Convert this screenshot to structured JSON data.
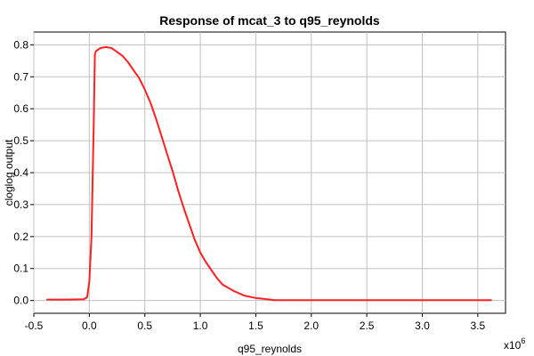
{
  "chart_data": {
    "type": "line",
    "title": "Response of mcat_3 to q95_reynolds",
    "xlabel": "q95_reynolds",
    "ylabel": "cloglog output",
    "x_multiplier_label": "x10",
    "x_multiplier_exponent": "6",
    "xlim": [
      -0.5,
      3.75
    ],
    "ylim": [
      -0.04,
      0.84
    ],
    "x_ticks": [
      -0.5,
      0.0,
      0.5,
      1.0,
      1.5,
      2.0,
      2.5,
      3.0,
      3.5
    ],
    "x_tick_labels": [
      "-0.5",
      "0.0",
      "0.5",
      "1.0",
      "1.5",
      "2.0",
      "2.5",
      "3.0",
      "3.5"
    ],
    "y_ticks": [
      0.0,
      0.1,
      0.2,
      0.3,
      0.4,
      0.5,
      0.6,
      0.7,
      0.8
    ],
    "y_tick_labels": [
      "0.0",
      "0.1",
      "0.2",
      "0.3",
      "0.4",
      "0.5",
      "0.6",
      "0.7",
      "0.8"
    ],
    "grid": true,
    "line_color": "#ff2020",
    "series": [
      {
        "x": [
          -0.38,
          -0.2,
          -0.05,
          -0.02,
          0.0,
          0.02,
          0.04,
          0.05,
          0.06,
          0.08,
          0.1,
          0.15,
          0.2,
          0.25,
          0.3,
          0.35,
          0.4,
          0.45,
          0.5,
          0.55,
          0.6,
          0.65,
          0.7,
          0.75,
          0.8,
          0.85,
          0.9,
          0.95,
          1.0,
          1.05,
          1.1,
          1.15,
          1.2,
          1.3,
          1.4,
          1.5,
          1.6,
          1.67,
          2.0,
          2.5,
          3.0,
          3.62
        ],
        "y": [
          0.003,
          0.003,
          0.004,
          0.01,
          0.06,
          0.2,
          0.55,
          0.77,
          0.78,
          0.785,
          0.79,
          0.793,
          0.79,
          0.778,
          0.765,
          0.745,
          0.72,
          0.695,
          0.66,
          0.62,
          0.57,
          0.515,
          0.46,
          0.405,
          0.345,
          0.29,
          0.24,
          0.19,
          0.15,
          0.12,
          0.095,
          0.07,
          0.05,
          0.03,
          0.015,
          0.008,
          0.004,
          0.001,
          0.001,
          0.001,
          0.001,
          0.001
        ]
      }
    ]
  }
}
